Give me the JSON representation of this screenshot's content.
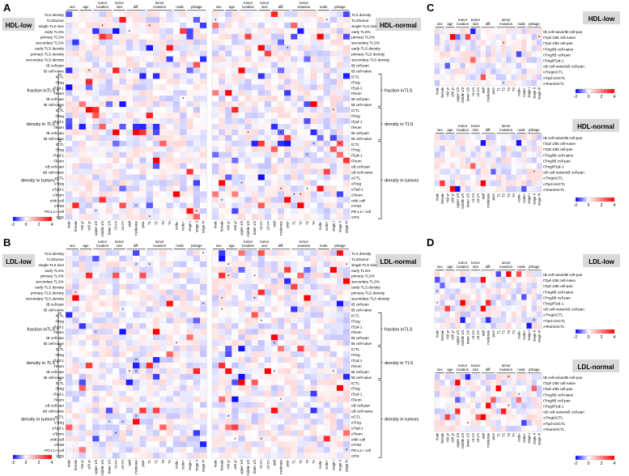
{
  "panels": {
    "A": {
      "letter": "A",
      "left_title": "HDL-low",
      "right_title": "HDL-normal"
    },
    "B": {
      "letter": "B",
      "left_title": "LDL-low",
      "right_title": "LDL-normal"
    },
    "C": {
      "letter": "C",
      "top_title": "HDL-low",
      "bottom_title": "HDL-normal"
    },
    "D": {
      "letter": "D",
      "top_title": "LDL-low",
      "bottom_title": "LDL-normal"
    }
  },
  "group_headers": [
    "sex",
    "age",
    "tumor location",
    "tumor size",
    "diff.",
    "tumor invasion",
    "node",
    "pStage"
  ],
  "column_labels": [
    "male",
    "female",
    "<60 yr",
    "≥60 yr",
    "upper 1/3",
    "middle 1/3",
    "lower 1/3",
    "<3 cm",
    "≥3 cm",
    "well",
    "moderate",
    "poor",
    "T1",
    "T2",
    "T3",
    "T4",
    "node-",
    "node+",
    "stage I",
    "stage II",
    "stage III"
  ],
  "row_labels_AB": [
    "TLS density",
    "TLS/tumor",
    "single-TLS size",
    "early TLS%",
    "primary TLS%",
    "secondary TLS%",
    "early-TLS density",
    "primary-TLS density",
    "secondary-TLS density",
    "tB cell-pan",
    "tB cell-naive",
    "tCTL",
    "tTreg",
    "tTpd-1",
    "tTeom",
    "tB cell-pan",
    "tB cell-naive",
    "tCTL",
    "tTreg",
    "tTpd-1",
    "tTeom",
    "tB cell-pan",
    "tB cell-naive",
    "tCTL",
    "tTreg",
    "tTpd-1",
    "tTeom",
    "eB cell-pan",
    "eB cell-naive",
    "eCTL",
    "eTreg",
    "eTpd-1",
    "eTeom",
    "eNK cell",
    "eTAM",
    "PD-L1+ cell",
    "CPS"
  ],
  "row_labels_CD": [
    "tB cell-naive/tB cell-pan",
    "tTpd-1/tB cell-naive",
    "tTpd-1/tB cell-pan",
    "tTreg/tB cell-naive",
    "tTreg/tB cell-pan",
    "tTreg/tTpd-1",
    "eB cell-naive/eB cell-pan",
    "eTreg/eCTL",
    "eTpd-1/eCTL",
    "eTeom/eCTL"
  ],
  "bracket_labels": [
    "fraction inTLS",
    "density in TLS",
    "density in tumors"
  ],
  "legend": {
    "ticks": [
      "-2",
      "0",
      "2",
      "4"
    ],
    "color_low": "#0000ff",
    "color_mid": "#ffffff",
    "color_high": "#ff0000"
  },
  "seed_note": "",
  "colors": {
    "panel_title_bg": "#d9d9d9",
    "grid": "#e8e8ee"
  }
}
